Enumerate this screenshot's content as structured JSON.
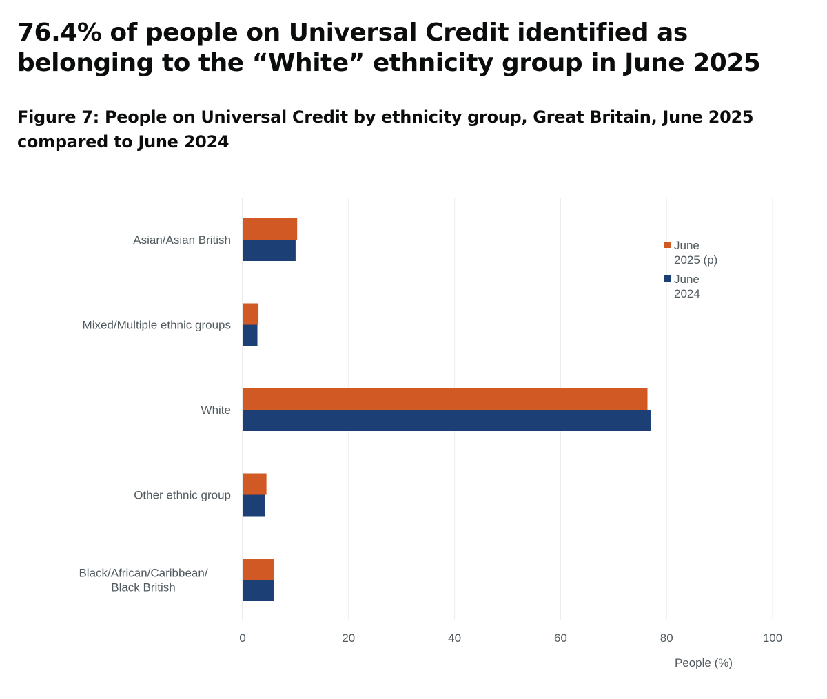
{
  "headline": "76.4% of people on Universal Credit identified as belonging to the “White” ethnicity group in June 2025",
  "chart_data": {
    "type": "bar",
    "orientation": "horizontal",
    "title": "Figure 7: People on Universal Credit by ethnicity group, Great Britain, June 2025 compared to June 2024",
    "categories": [
      "Asian/Asian British",
      "Mixed/Multiple ethnic groups",
      "White",
      "Other ethnic group",
      "Black/African/Caribbean/Black British"
    ],
    "series": [
      {
        "name": "June 2025 (p)",
        "legend_lines": [
          "June",
          "2025 (p)"
        ],
        "color": "#d15a24",
        "values": [
          10.3,
          3.0,
          76.4,
          4.5,
          5.9
        ]
      },
      {
        "name": "June 2024",
        "legend_lines": [
          "June",
          "2024"
        ],
        "color": "#1c3f75",
        "values": [
          10.0,
          2.8,
          77.0,
          4.2,
          5.9
        ]
      }
    ],
    "xlabel": "People (%)",
    "ylabel": "",
    "xlim": [
      0,
      100
    ],
    "xticks": [
      0,
      20,
      40,
      60,
      80,
      100
    ],
    "grid": true,
    "legend_position": "top-right"
  }
}
